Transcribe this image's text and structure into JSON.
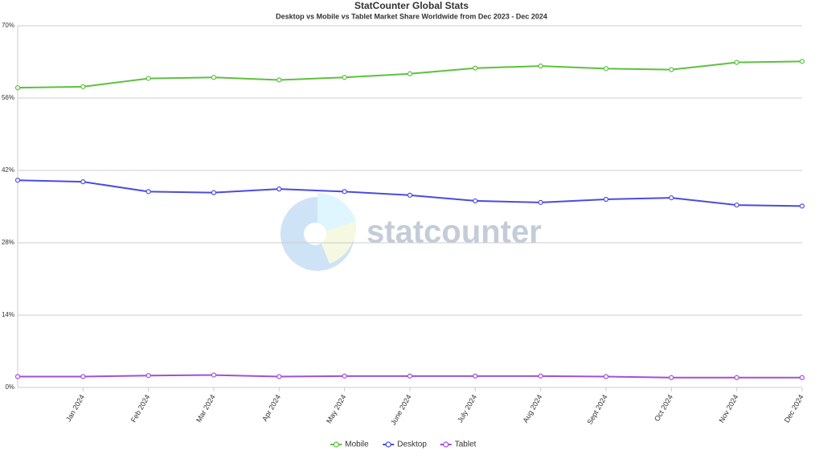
{
  "chart_data": {
    "type": "line",
    "title": "StatCounter Global Stats",
    "subtitle": "Desktop vs Mobile vs Tablet Market Share Worldwide from Dec 2023 - Dec 2024",
    "watermark": "statcounter",
    "categories": [
      null,
      "Jan 2024",
      "Feb 2024",
      "Mar 2024",
      "Apr 2024",
      "May 2024",
      "June 2024",
      "July 2024",
      "Aug 2024",
      "Sept 2024",
      "Oct 2024",
      "Nov 2024",
      "Dec 2024"
    ],
    "series": [
      {
        "name": "Mobile",
        "color": "#5cc13f",
        "values": [
          58.0,
          58.2,
          59.8,
          60.0,
          59.5,
          60.0,
          60.7,
          61.8,
          62.2,
          61.7,
          61.5,
          62.9,
          63.1
        ]
      },
      {
        "name": "Desktop",
        "color": "#4b4be0",
        "values": [
          40.1,
          39.8,
          37.9,
          37.7,
          38.4,
          37.9,
          37.2,
          36.1,
          35.8,
          36.4,
          36.7,
          35.3,
          35.1
        ]
      },
      {
        "name": "Tablet",
        "color": "#a24fd8",
        "values": [
          2.1,
          2.1,
          2.3,
          2.4,
          2.1,
          2.2,
          2.2,
          2.2,
          2.2,
          2.1,
          1.9,
          1.9,
          1.9
        ]
      }
    ],
    "ylim": [
      0,
      70
    ],
    "yticks": [
      {
        "value": 0,
        "label": "0%"
      },
      {
        "value": 14,
        "label": "14%"
      },
      {
        "value": 28,
        "label": "28%"
      },
      {
        "value": 42,
        "label": "42%"
      },
      {
        "value": 56,
        "label": "56%"
      },
      {
        "value": 70,
        "label": "70%"
      }
    ],
    "grid": true,
    "legend": "bottom"
  }
}
